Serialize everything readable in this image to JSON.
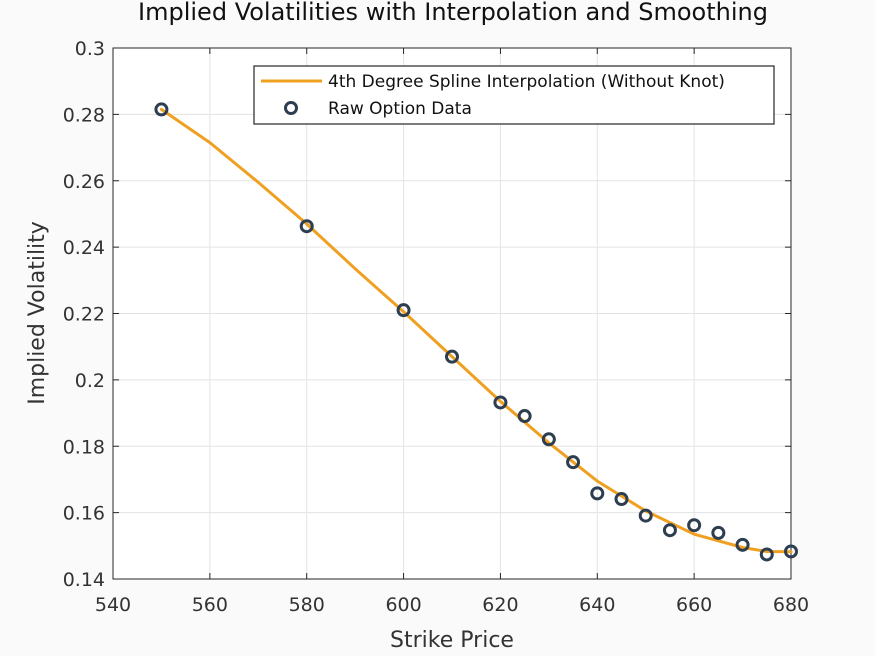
{
  "chart_data": {
    "type": "line",
    "title": "Implied Volatilities with Interpolation and Smoothing",
    "xlabel": "Strike Price",
    "ylabel": "Implied Volatility",
    "xlim": [
      540,
      680
    ],
    "ylim": [
      0.14,
      0.3
    ],
    "xticks": [
      "540",
      "560",
      "580",
      "600",
      "620",
      "640",
      "660",
      "680"
    ],
    "yticks": [
      "0.14",
      "0.16",
      "0.18",
      "0.2",
      "0.22",
      "0.24",
      "0.26",
      "0.28",
      "0.3"
    ],
    "grid": true,
    "legend_position": "top-right",
    "series": [
      {
        "name": "4th Degree Spline Interpolation (Without Knot)",
        "kind": "line",
        "color": "#f0a020",
        "x": [
          550,
          560,
          570,
          580,
          590,
          600,
          610,
          620,
          630,
          640,
          650,
          660,
          670,
          675,
          680
        ],
        "y": [
          0.2815,
          0.2715,
          0.2595,
          0.247,
          0.2335,
          0.2205,
          0.207,
          0.1935,
          0.181,
          0.1695,
          0.1605,
          0.1535,
          0.1495,
          0.1483,
          0.1482
        ]
      },
      {
        "name": "Raw Option Data",
        "kind": "scatter",
        "color": "#2d3e50",
        "x": [
          550,
          580,
          600,
          610,
          620,
          625,
          630,
          635,
          640,
          645,
          650,
          655,
          660,
          665,
          670,
          675,
          680
        ],
        "y": [
          0.2815,
          0.2463,
          0.221,
          0.207,
          0.1932,
          0.1891,
          0.1821,
          0.1752,
          0.1658,
          0.1641,
          0.1591,
          0.1547,
          0.1562,
          0.1539,
          0.1503,
          0.1474,
          0.1483
        ]
      }
    ]
  }
}
